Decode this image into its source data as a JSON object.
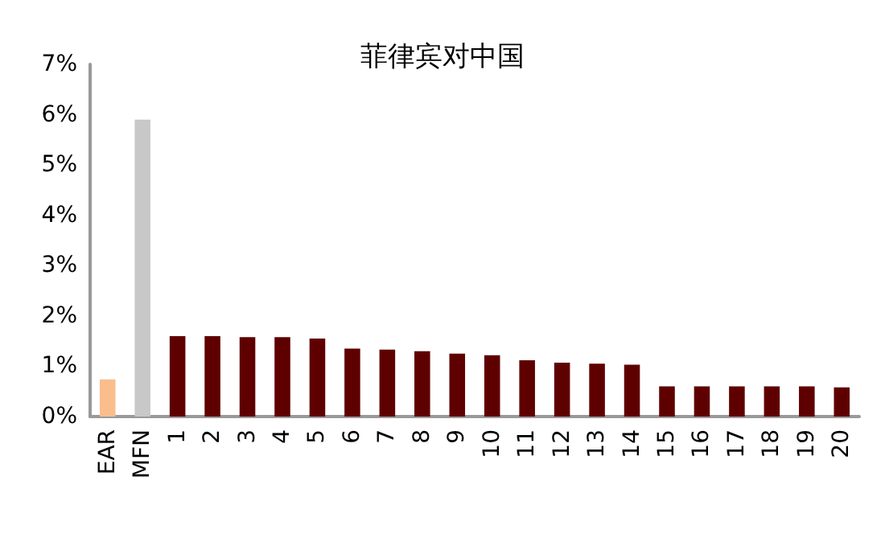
{
  "chart_data": {
    "type": "bar",
    "title": "菲律宾对中国",
    "categories": [
      "EAR",
      "MFN",
      "1",
      "2",
      "3",
      "4",
      "5",
      "6",
      "7",
      "8",
      "9",
      "10",
      "11",
      "12",
      "13",
      "14",
      "15",
      "16",
      "17",
      "18",
      "19",
      "20"
    ],
    "values": [
      0.74,
      5.9,
      1.6,
      1.6,
      1.58,
      1.58,
      1.55,
      1.35,
      1.33,
      1.3,
      1.25,
      1.22,
      1.12,
      1.07,
      1.05,
      1.03,
      0.6,
      0.6,
      0.6,
      0.6,
      0.6,
      0.58
    ],
    "colors": [
      "#f9be8c",
      "#c8c8c8",
      "#5f0000",
      "#5f0000",
      "#5f0000",
      "#5f0000",
      "#5f0000",
      "#5f0000",
      "#5f0000",
      "#5f0000",
      "#5f0000",
      "#5f0000",
      "#5f0000",
      "#5f0000",
      "#5f0000",
      "#5f0000",
      "#5f0000",
      "#5f0000",
      "#5f0000",
      "#5f0000",
      "#5f0000",
      "#5f0000"
    ],
    "ylim": [
      0,
      7
    ],
    "yticks": [
      {
        "value": 0,
        "label": "0%"
      },
      {
        "value": 1,
        "label": "1%"
      },
      {
        "value": 2,
        "label": "2%"
      },
      {
        "value": 3,
        "label": "3%"
      },
      {
        "value": 4,
        "label": "4%"
      },
      {
        "value": 5,
        "label": "5%"
      },
      {
        "value": 6,
        "label": "6%"
      },
      {
        "value": 7,
        "label": "7%"
      }
    ],
    "grid": false
  }
}
